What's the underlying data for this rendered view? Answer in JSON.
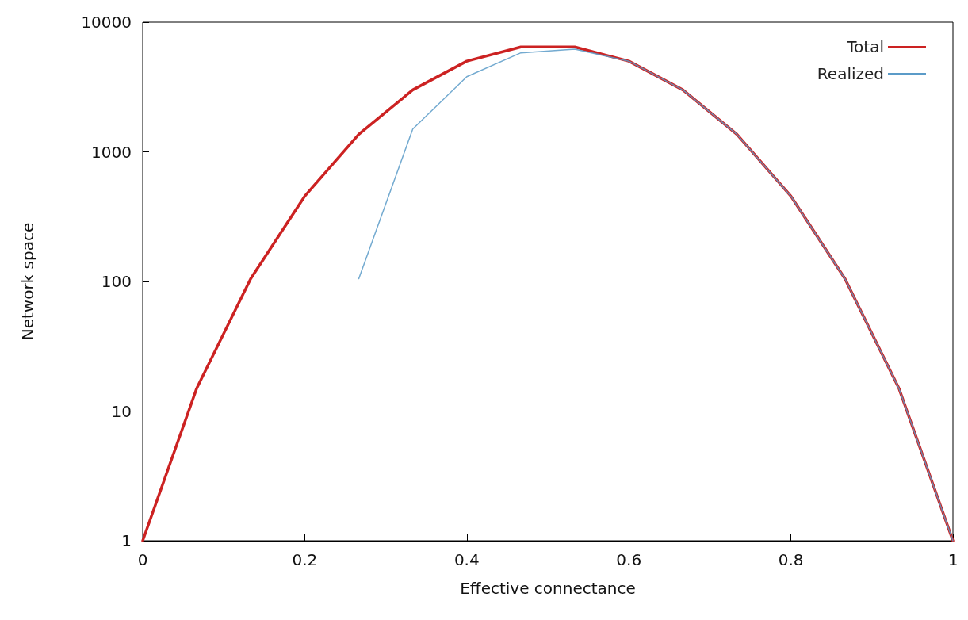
{
  "chart_data": {
    "type": "line",
    "xlabel": "Effective connectance",
    "ylabel": "Network space",
    "xlim": [
      0,
      1
    ],
    "xticks": [
      0,
      0.2,
      0.4,
      0.6,
      0.8,
      1
    ],
    "ylim": [
      1,
      10000
    ],
    "yticks": [
      1,
      10,
      100,
      1000,
      10000
    ],
    "log": "y",
    "grid": false,
    "legend": "top right",
    "marker": "none",
    "line_style": "solid",
    "series": [
      {
        "name": "Total",
        "color": "#cc2222",
        "x": [
          0,
          0.0667,
          0.1333,
          0.2,
          0.2667,
          0.3333,
          0.4,
          0.4667,
          0.5333,
          0.6,
          0.6667,
          0.7333,
          0.8,
          0.8667,
          0.9333,
          1
        ],
        "values": [
          1,
          15,
          105,
          455,
          1365,
          3003,
          5005,
          6435,
          6435,
          5005,
          3003,
          1365,
          455,
          105,
          15,
          1
        ]
      },
      {
        "name": "Realized",
        "color": "#5b9bc8",
        "x": [
          0.2667,
          0.3333,
          0.4,
          0.4667,
          0.5333,
          0.6,
          0.6667,
          0.7333,
          0.8,
          0.8667,
          0.9333,
          1
        ],
        "values": [
          105,
          1500,
          3800,
          5800,
          6200,
          5005,
          3003,
          1365,
          455,
          105,
          15,
          1
        ]
      }
    ]
  }
}
